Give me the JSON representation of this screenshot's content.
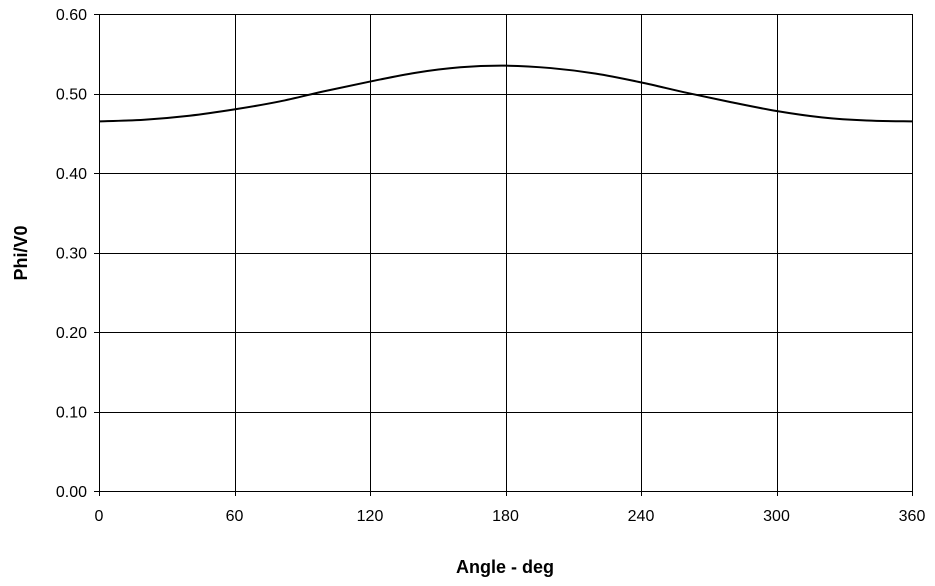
{
  "chart_data": {
    "type": "line",
    "title": "",
    "xlabel": "Angle - deg",
    "ylabel": "Phi/V0",
    "xlim": [
      0,
      360
    ],
    "ylim": [
      0,
      0.6
    ],
    "grid": true,
    "x_ticks": [
      "0",
      "60",
      "120",
      "180",
      "240",
      "300",
      "360"
    ],
    "y_ticks": [
      "0.00",
      "0.10",
      "0.20",
      "0.30",
      "0.40",
      "0.50",
      "0.60"
    ],
    "series": [
      {
        "x": [
          0,
          20,
          40,
          60,
          80,
          100,
          120,
          140,
          160,
          180,
          200,
          220,
          240,
          260,
          280,
          300,
          320,
          340,
          360
        ],
        "y": [
          0.465,
          0.467,
          0.472,
          0.48,
          0.49,
          0.503,
          0.515,
          0.526,
          0.533,
          0.535,
          0.532,
          0.525,
          0.514,
          0.501,
          0.489,
          0.478,
          0.47,
          0.466,
          0.465
        ]
      }
    ]
  }
}
